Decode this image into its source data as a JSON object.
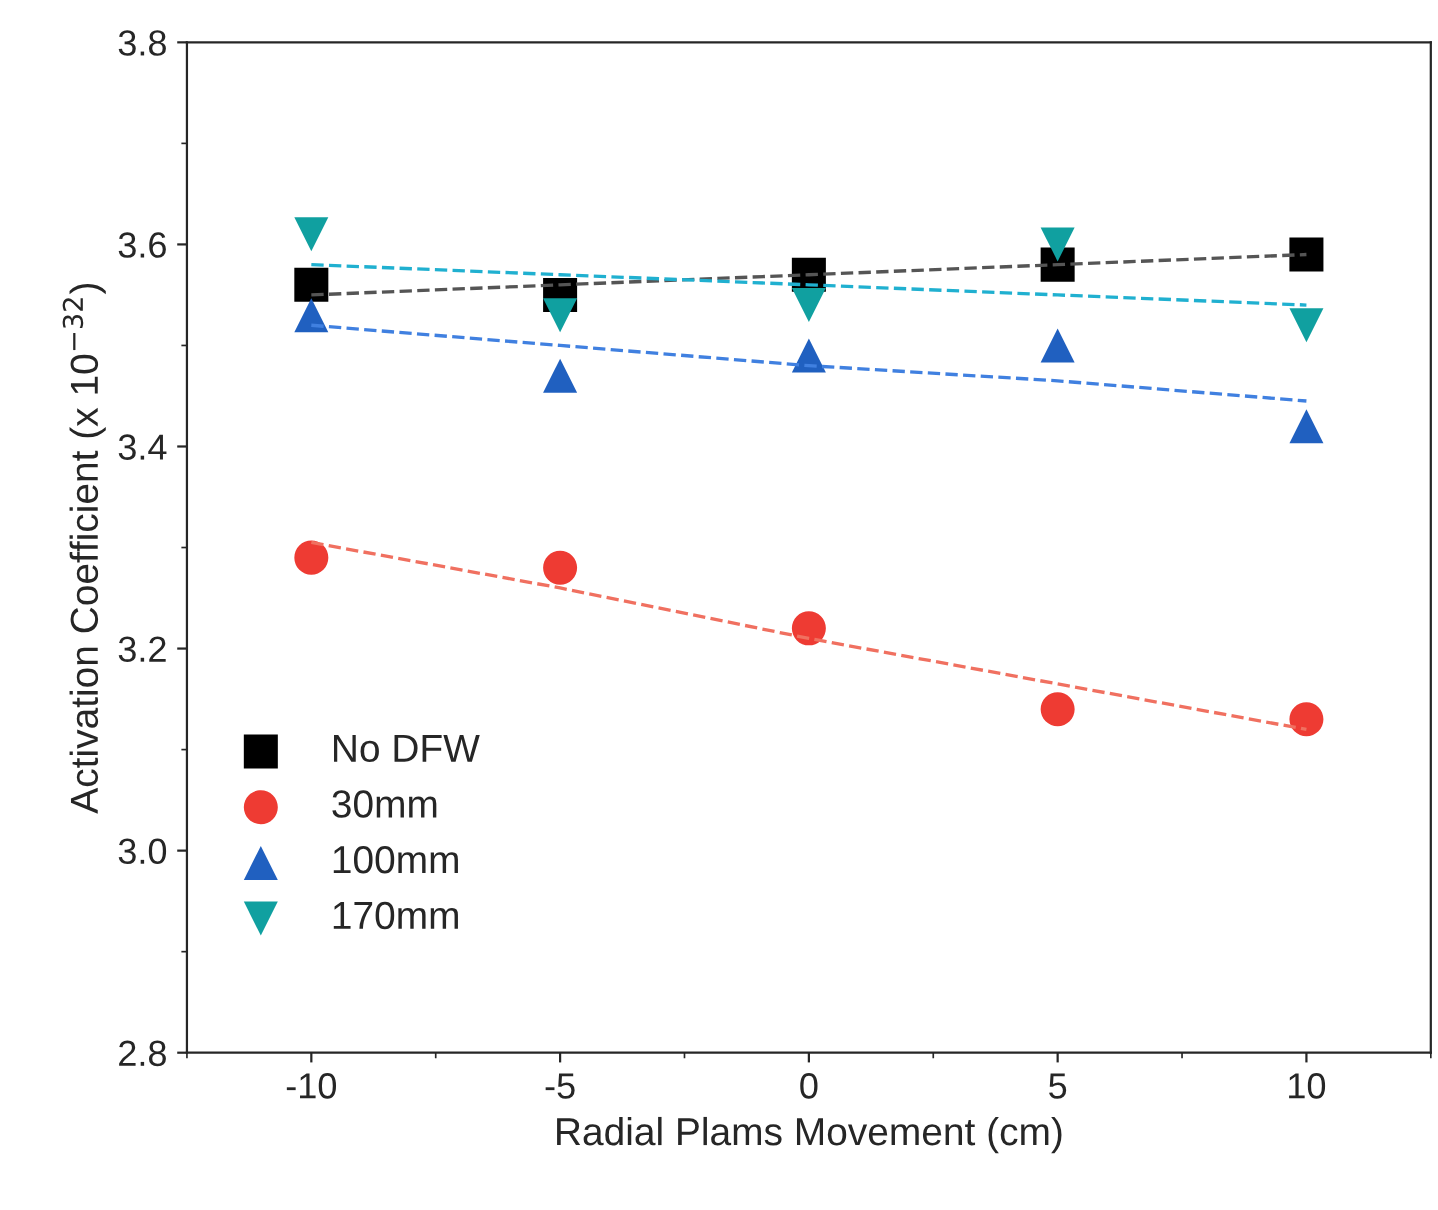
{
  "chart_data": {
    "type": "scatter",
    "xlabel": "Radial Plams Movement (cm)",
    "ylabel": "Activation Coefficient (x 10$^{−32}$)",
    "x": [
      -10,
      -5,
      0,
      5,
      10
    ],
    "series": [
      {
        "name": "No DFW",
        "color": "#000000",
        "marker": "square",
        "values": [
          3.56,
          3.55,
          3.57,
          3.58,
          3.59
        ]
      },
      {
        "name": "30mm",
        "color": "#ee3b33",
        "marker": "circle",
        "values": [
          3.29,
          3.28,
          3.22,
          3.14,
          3.13
        ]
      },
      {
        "name": "100mm",
        "color": "#2060c0",
        "marker": "triangle",
        "values": [
          3.53,
          3.47,
          3.49,
          3.5,
          3.42
        ]
      },
      {
        "name": "170mm",
        "color": "#10a0a0",
        "marker": "triangle_down",
        "values": [
          3.61,
          3.53,
          3.54,
          3.6,
          3.52
        ]
      },
      {
        "type": "line",
        "color": "#555555",
        "line_style": "dashed",
        "values": [
          3.55,
          3.56,
          3.57,
          3.58,
          3.59
        ]
      },
      {
        "type": "line",
        "color": "#f07060",
        "line_style": "dashed",
        "values": [
          3.305,
          3.26,
          3.21,
          3.165,
          3.12
        ]
      },
      {
        "type": "line",
        "color": "#4080e0",
        "line_style": "dashed",
        "values": [
          3.52,
          3.5,
          3.48,
          3.465,
          3.445
        ]
      },
      {
        "type": "line",
        "color": "#20b0d0",
        "line_style": "dashed",
        "values": [
          3.58,
          3.57,
          3.56,
          3.55,
          3.54
        ]
      }
    ],
    "xlim": [
      -12.5,
      12.5
    ],
    "xticks": [
      -10,
      -5,
      0,
      5,
      10
    ],
    "ylim": [
      2.8,
      3.8
    ],
    "yticks": [
      2.8,
      {
        "value": 3,
        "label": "3.0"
      },
      3.2,
      3.4,
      3.6,
      3.8
    ],
    "grid": false,
    "legend": "bottom left"
  }
}
